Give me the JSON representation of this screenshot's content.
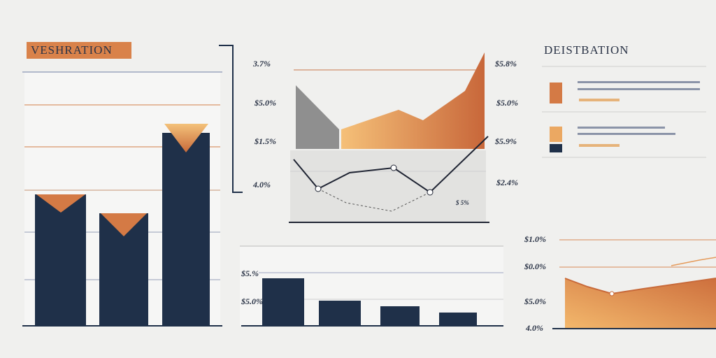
{
  "header": {
    "left_title": "VESHRATION",
    "right_title": "DEISTBATION"
  },
  "area_chart": {
    "left_labels": [
      "3.7%",
      "$5.0%",
      "$1.5%",
      "4.0%"
    ],
    "right_labels": [
      "$5.8%",
      "$5.0%",
      "$5.9%",
      "$2.4%"
    ],
    "annotation": "$ 5%"
  },
  "bar_chart": {
    "labels": [
      "$5.%",
      "$5.0%"
    ]
  },
  "right_chart": {
    "labels": [
      "$1.0%",
      "$0.0%",
      "$5.0%",
      "4.0%"
    ]
  }
}
